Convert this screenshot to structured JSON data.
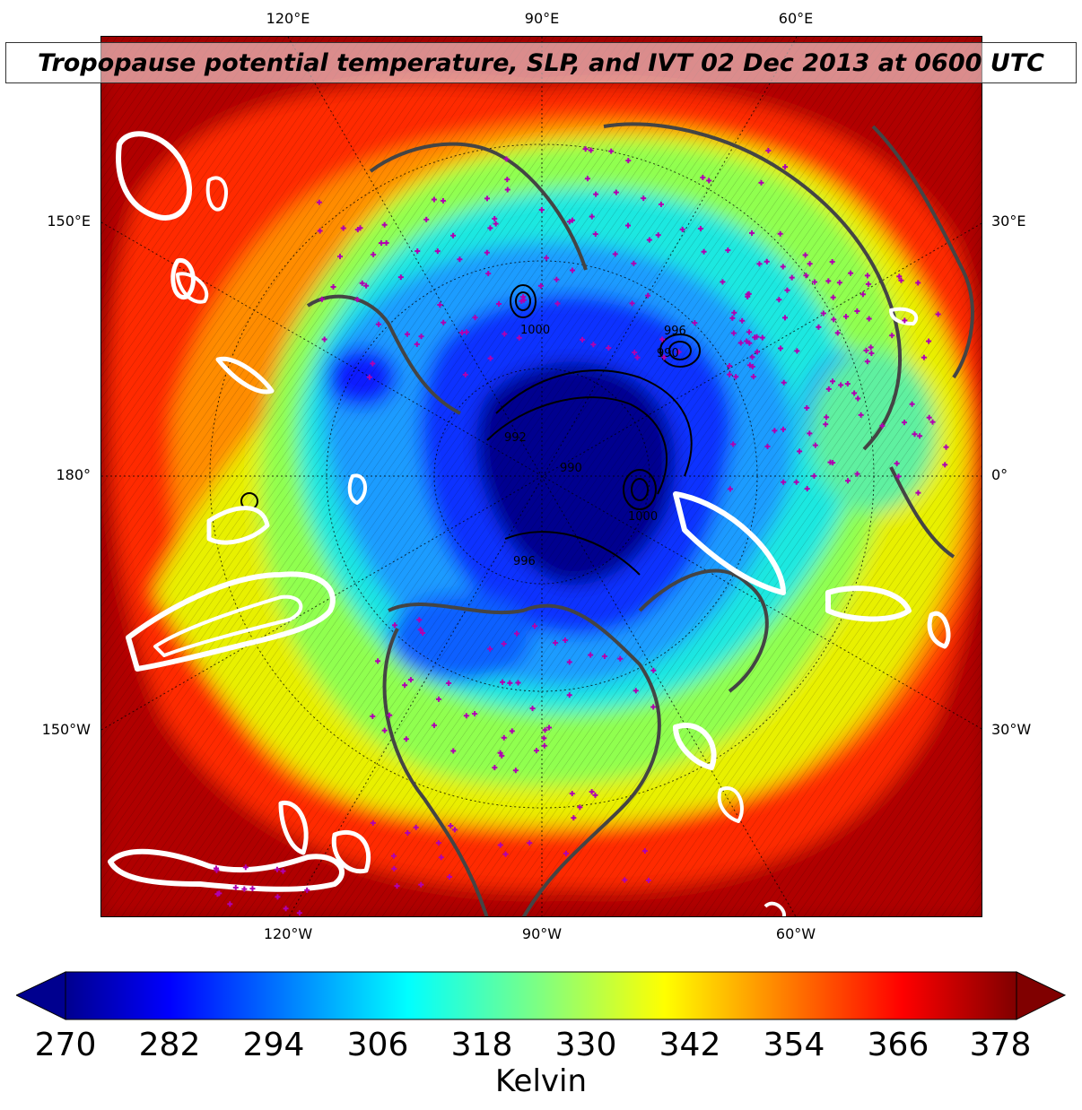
{
  "title": "Tropopause potential temperature, SLP, and IVT 02 Dec 2013 at 0600 UTC",
  "longitude_labels": {
    "top": [
      "120°E",
      "90°E",
      "60°E"
    ],
    "bottom": [
      "120°W",
      "90°W",
      "60°W"
    ],
    "left": [
      "150°E",
      "180°",
      "150°W"
    ],
    "right": [
      "30°E",
      "0°",
      "30°W"
    ]
  },
  "colorbar": {
    "ticks": [
      "270",
      "282",
      "294",
      "306",
      "318",
      "330",
      "342",
      "354",
      "366",
      "378"
    ],
    "min": 270,
    "max": 378,
    "extend": "both",
    "colormap": "jet",
    "label": "Kelvin"
  },
  "slp_contour_labels": [
    "1000",
    "996",
    "990",
    "992",
    "990",
    "996",
    "1000"
  ],
  "colors": {
    "coast": "#444444",
    "ivt_contour": "#ffffff",
    "slp_contour": "#000000",
    "station_marker": "#b000b0",
    "graticule": "#000000"
  },
  "layers": [
    "tropopause potential temperature fill",
    "sea level pressure contours",
    "IVT contours (white)",
    "coastlines and borders",
    "graticule (dotted)",
    "station markers (magenta +)"
  ]
}
